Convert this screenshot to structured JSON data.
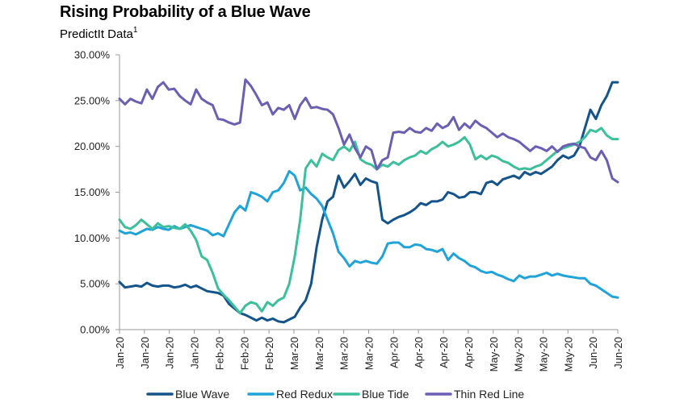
{
  "chart_data": {
    "type": "line",
    "title": "Rising Probability of a Blue Wave",
    "subtitle": "PredictIt Data",
    "subtitle_sup": "1",
    "xlabel": "",
    "ylabel": "",
    "ylim": [
      0,
      30
    ],
    "y_ticks": [
      "0.00%",
      "5.00%",
      "10.00%",
      "15.00%",
      "20.00%",
      "25.00%",
      "30.00%"
    ],
    "y_tick_values": [
      0,
      5,
      10,
      15,
      20,
      25,
      30
    ],
    "x_tick_labels": [
      "Jan-20",
      "Jan-20",
      "Jan-20",
      "Jan-20",
      "Feb-20",
      "Feb-20",
      "Feb-20",
      "Mar-20",
      "Mar-20",
      "Mar-20",
      "Mar-20",
      "Apr-20",
      "Apr-20",
      "Apr-20",
      "Apr-20",
      "May-20",
      "May-20",
      "May-20",
      "May-20",
      "Jun-20",
      "Jun-20"
    ],
    "grid": false,
    "legend_position": "bottom",
    "series": [
      {
        "name": "Blue Wave",
        "color": "#15548a",
        "values": [
          5.2,
          4.6,
          4.7,
          4.8,
          4.7,
          5.1,
          4.8,
          4.7,
          4.8,
          4.8,
          4.6,
          4.7,
          4.9,
          4.6,
          4.8,
          4.5,
          4.2,
          4.1,
          4.0,
          3.7,
          2.8,
          2.3,
          1.8,
          1.6,
          1.3,
          1.0,
          1.3,
          1.0,
          1.2,
          0.9,
          0.8,
          1.1,
          1.4,
          2.4,
          3.2,
          5.0,
          9.0,
          12.0,
          14.0,
          14.5,
          16.8,
          15.5,
          16.2,
          17.0,
          15.8,
          16.5,
          16.2,
          16.0,
          12.0,
          11.6,
          12.0,
          12.3,
          12.5,
          12.8,
          13.2,
          13.8,
          13.6,
          14.0,
          14.0,
          14.2,
          15.0,
          14.8,
          14.4,
          14.5,
          15.0,
          15.0,
          14.8,
          16.0,
          16.2,
          15.8,
          16.4,
          16.6,
          16.8,
          16.5,
          17.2,
          16.9,
          17.2,
          17.0,
          17.4,
          17.8,
          18.5,
          19.0,
          18.7,
          19.0,
          20.0,
          22.0,
          24.0,
          23.0,
          24.5,
          25.5,
          27.0,
          27.0
        ]
      },
      {
        "name": "Red Redux",
        "color": "#1fa3d8",
        "values": [
          10.8,
          10.5,
          10.6,
          10.4,
          10.7,
          11.0,
          10.9,
          11.2,
          11.0,
          10.9,
          11.3,
          11.0,
          11.2,
          11.4,
          11.2,
          11.0,
          10.8,
          10.3,
          10.5,
          10.2,
          11.5,
          12.8,
          13.5,
          13.0,
          15.0,
          14.8,
          14.5,
          14.0,
          15.0,
          15.2,
          16.0,
          17.3,
          16.8,
          15.2,
          15.5,
          14.8,
          14.3,
          13.5,
          12.0,
          10.5,
          8.5,
          7.8,
          6.9,
          7.5,
          7.3,
          7.5,
          7.3,
          7.2,
          8.0,
          9.4,
          9.5,
          9.5,
          9.0,
          9.0,
          9.3,
          9.2,
          8.8,
          8.7,
          8.5,
          8.8,
          7.6,
          8.3,
          7.8,
          7.5,
          7.0,
          6.8,
          6.4,
          6.2,
          6.3,
          6.0,
          5.8,
          5.5,
          5.3,
          5.9,
          5.6,
          5.8,
          5.8,
          6.0,
          6.2,
          5.9,
          6.1,
          5.9,
          5.8,
          5.7,
          5.6,
          5.6,
          5.0,
          4.8,
          4.4,
          4.0,
          3.6,
          3.5
        ]
      },
      {
        "name": "Blue Tide",
        "color": "#3cbf9b",
        "values": [
          12.0,
          11.2,
          11.0,
          11.4,
          12.0,
          11.5,
          11.0,
          11.6,
          11.2,
          11.3,
          11.1,
          11.0,
          11.5,
          10.8,
          9.8,
          8.0,
          7.6,
          6.2,
          4.5,
          3.8,
          3.2,
          2.5,
          1.8,
          2.6,
          3.0,
          2.8,
          2.0,
          3.0,
          2.6,
          3.2,
          3.5,
          5.0,
          8.0,
          12.0,
          17.6,
          18.5,
          17.8,
          19.2,
          18.8,
          18.5,
          19.6,
          20.0,
          19.5,
          20.5,
          18.6,
          18.2,
          18.0,
          17.5,
          18.0,
          17.8,
          18.3,
          18.0,
          18.5,
          18.8,
          19.0,
          19.5,
          19.2,
          19.7,
          20.0,
          20.5,
          20.0,
          20.2,
          20.5,
          21.0,
          20.2,
          18.6,
          19.0,
          18.6,
          19.0,
          18.8,
          18.4,
          18.2,
          17.8,
          17.5,
          17.6,
          17.5,
          17.8,
          18.0,
          18.5,
          19.0,
          19.5,
          19.8,
          20.0,
          20.2,
          20.5,
          21.0,
          21.8,
          21.6,
          22.0,
          21.2,
          20.8,
          20.8
        ]
      },
      {
        "name": "Thin Red Line",
        "color": "#6b5fb4",
        "values": [
          25.2,
          24.6,
          25.2,
          24.9,
          24.7,
          26.2,
          25.2,
          26.5,
          27.0,
          26.2,
          26.3,
          25.5,
          25.0,
          24.6,
          26.2,
          25.2,
          24.8,
          24.5,
          23.0,
          22.9,
          22.6,
          22.4,
          22.6,
          27.3,
          26.6,
          25.6,
          24.5,
          24.8,
          23.5,
          24.2,
          24.0,
          24.5,
          23.0,
          24.5,
          25.3,
          24.2,
          24.3,
          24.1,
          24.0,
          23.5,
          22.0,
          20.2,
          21.3,
          19.8,
          18.8,
          20.0,
          19.6,
          17.5,
          18.5,
          18.8,
          21.5,
          21.6,
          21.5,
          22.0,
          21.6,
          21.5,
          22.0,
          21.7,
          22.5,
          22.0,
          22.3,
          23.2,
          21.8,
          22.5,
          22.0,
          22.8,
          22.3,
          22.0,
          21.5,
          21.0,
          21.4,
          21.0,
          20.8,
          20.5,
          20.0,
          19.5,
          20.0,
          19.8,
          19.5,
          20.0,
          19.4,
          20.0,
          20.2,
          20.3,
          20.0,
          19.8,
          18.8,
          18.5,
          19.5,
          18.5,
          16.5,
          16.1
        ]
      }
    ]
  }
}
